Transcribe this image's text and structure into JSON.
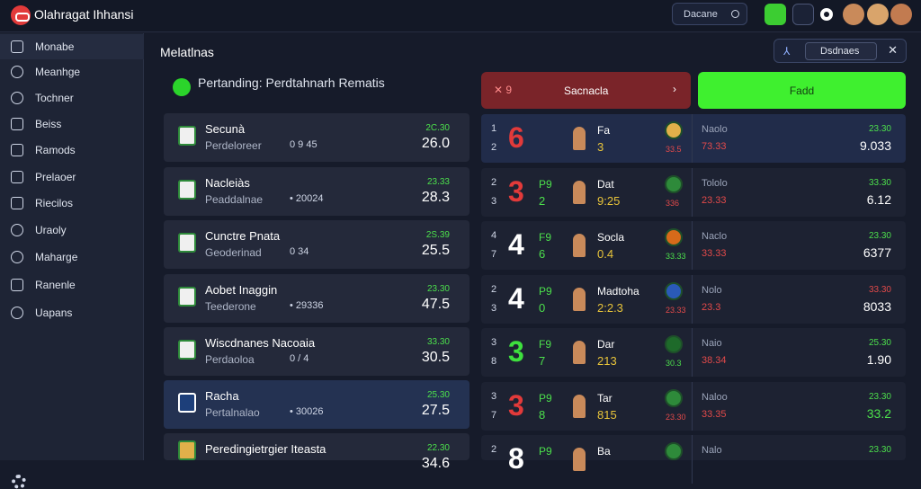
{
  "app": {
    "title": "Olahragat Ihhansi"
  },
  "search": {
    "label": "Dacane"
  },
  "sidebar": {
    "items": [
      {
        "label": "Monabe"
      },
      {
        "label": "Meanhge"
      },
      {
        "label": "Tochner"
      },
      {
        "label": "Beiss"
      },
      {
        "label": "Ramods"
      },
      {
        "label": "Prelaoer"
      },
      {
        "label": "Riecilos"
      },
      {
        "label": "Uraoly"
      },
      {
        "label": "Maharge"
      },
      {
        "label": "Ranenle"
      },
      {
        "label": "Uapans"
      }
    ]
  },
  "main": {
    "title": "Melatlnas",
    "section": "Pertanding: Perdtahnarh Rematis",
    "filter_label": "Dsdnaes"
  },
  "controls": {
    "red_icon": "✕ 9",
    "red_label": "Sacnacla",
    "green_label": "Fadd"
  },
  "cards": [
    {
      "name": "Secunà",
      "sub": "Perdeloreer",
      "info": "0 9 45",
      "pct": "2C.30",
      "val": "26.0"
    },
    {
      "name": "Nacleiàs",
      "sub": "Peaddalnae",
      "info": "• 20024",
      "pct": "23.33",
      "val": "28.3"
    },
    {
      "name": "Cunctre Pnata",
      "sub": "Geoderinad",
      "info": "0 34",
      "pct": "2S.39",
      "val": "25.5"
    },
    {
      "name": "Aobet Inaggin",
      "sub": "Teederone",
      "info": "• 29336",
      "pct": "23.30",
      "val": "47.5"
    },
    {
      "name": "Wiscdnanes Nacoaia",
      "sub": "Perdaoloa",
      "info": "0 / 4",
      "pct": "33.30",
      "val": "30.5"
    },
    {
      "name": "Racha",
      "sub": "Pertalnalao",
      "info": "• 30026",
      "pct": "25.30",
      "val": "27.5"
    },
    {
      "name": "Peredingietrgier Iteasta",
      "sub": "",
      "info": "",
      "pct": "22.30",
      "val": "34.6"
    }
  ],
  "rows": [
    {
      "n1": "1",
      "n2": "2",
      "big": "6",
      "big_color": "#e23a3a",
      "lt": "",
      "ln": "",
      "pn": "Fa",
      "pv": "3",
      "cv": "33.5",
      "sn": "Naolo",
      "sv": "73.33",
      "rp": "23.30",
      "rv": "9.033"
    },
    {
      "n1": "2",
      "n2": "3",
      "big": "3",
      "big_color": "#e23a3a",
      "lt": "P9",
      "ln": "2",
      "pn": "Dat",
      "pv": "9:25",
      "cv": "336",
      "sn": "Tololo",
      "sv": "23.33",
      "rp": "33.30",
      "rv": "6.12"
    },
    {
      "n1": "4",
      "n2": "7",
      "big": "4",
      "big_color": "#ffffff",
      "lt": "F9",
      "ln": "6",
      "pn": "Socla",
      "pv": "0.4",
      "cv": "33.33",
      "sn": "Naclo",
      "sv": "33.33",
      "rp": "23.30",
      "rv": "6377"
    },
    {
      "n1": "2",
      "n2": "3",
      "big": "4",
      "big_color": "#ffffff",
      "lt": "P9",
      "ln": "0",
      "pn": "Madtoha",
      "pv": "2:2.3",
      "cv": "23.33",
      "sn": "Nolo",
      "sv": "23.3",
      "rp": "33.30",
      "rv": "8033"
    },
    {
      "n1": "3",
      "n2": "8",
      "big": "3",
      "big_color": "#3ee03e",
      "lt": "F9",
      "ln": "7",
      "pn": "Dar",
      "pv": "213",
      "cv": "30.3",
      "sn": "Naio",
      "sv": "38.34",
      "rp": "25.30",
      "rv": "1.90"
    },
    {
      "n1": "3",
      "n2": "7",
      "big": "3",
      "big_color": "#e23a3a",
      "lt": "P9",
      "ln": "8",
      "pn": "Tar",
      "pv": "815",
      "cv": "23.30",
      "sn": "Naloo",
      "sv": "33.35",
      "rp": "23.30",
      "rv": "33.2"
    },
    {
      "n1": "2",
      "n2": "",
      "big": "8",
      "big_color": "#ffffff",
      "lt": "P9",
      "ln": "",
      "pn": "Ba",
      "pv": "",
      "cv": "",
      "sn": "Nalo",
      "sv": "",
      "rp": "23.30",
      "rv": ""
    }
  ]
}
